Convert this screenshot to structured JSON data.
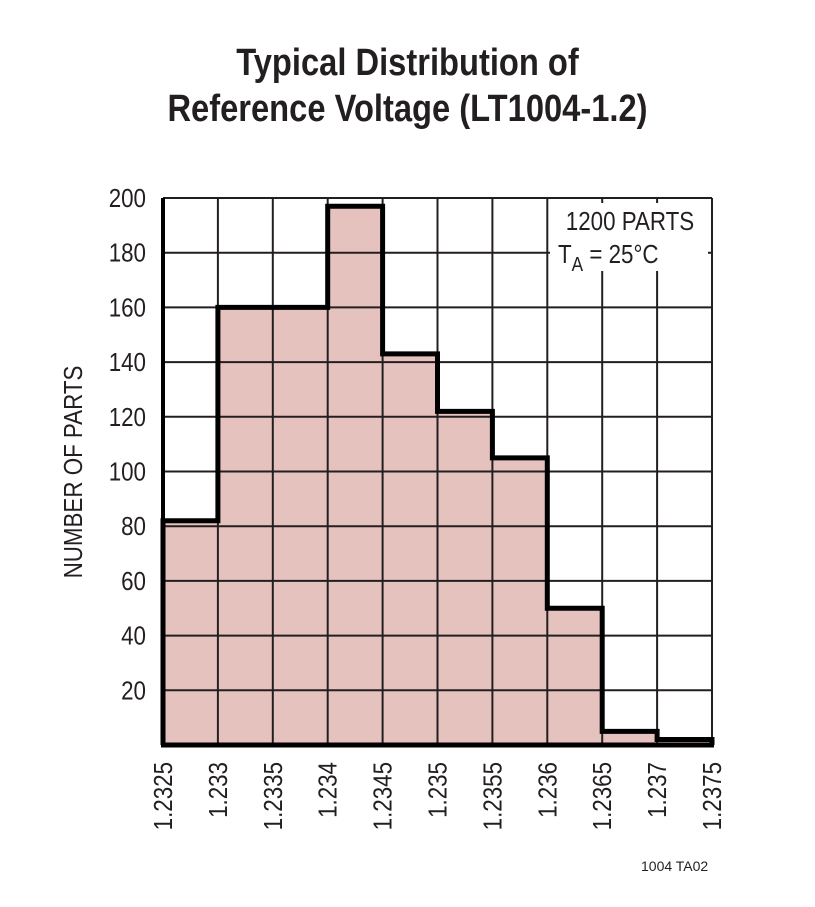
{
  "chart_data": {
    "type": "histogram",
    "title": [
      "Typical Distribution of",
      "Reference Voltage (LT1004-1.2)"
    ],
    "xlabel": "",
    "ylabel": "NUMBER OF PARTS",
    "x_ticks": [
      "1.2325",
      "1.233",
      "1.2335",
      "1.234",
      "1.2345",
      "1.235",
      "1.2355",
      "1.236",
      "1.2365",
      "1.237",
      "1.2375"
    ],
    "y_ticks": [
      "20",
      "40",
      "60",
      "80",
      "100",
      "120",
      "140",
      "160",
      "180",
      "200"
    ],
    "xlim": [
      1.2325,
      1.2375
    ],
    "ylim": [
      0,
      200
    ],
    "grid": true,
    "bins": [
      {
        "start": 1.2325,
        "end": 1.233,
        "count": 82
      },
      {
        "start": 1.233,
        "end": 1.2335,
        "count": 160
      },
      {
        "start": 1.2335,
        "end": 1.234,
        "count": 160
      },
      {
        "start": 1.234,
        "end": 1.2345,
        "count": 197
      },
      {
        "start": 1.2345,
        "end": 1.235,
        "count": 143
      },
      {
        "start": 1.235,
        "end": 1.2355,
        "count": 122
      },
      {
        "start": 1.2355,
        "end": 1.236,
        "count": 105
      },
      {
        "start": 1.236,
        "end": 1.2365,
        "count": 50
      },
      {
        "start": 1.2365,
        "end": 1.237,
        "count": 5
      },
      {
        "start": 1.237,
        "end": 1.2375,
        "count": 2
      }
    ],
    "annotation": {
      "line1": "1200 PARTS",
      "line2_main": "T",
      "line2_sub": "A",
      "line2_rest": " = 25°C"
    },
    "fill_color": "#e6c2bf",
    "line_color": "#000000",
    "grid_color": "#231f20"
  },
  "footer": "1004 TA02"
}
